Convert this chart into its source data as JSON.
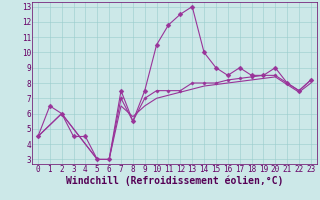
{
  "xlabel": "Windchill (Refroidissement éolien,°C)",
  "xlim": [
    0,
    23
  ],
  "ylim": [
    3,
    13
  ],
  "xticks": [
    0,
    1,
    2,
    3,
    4,
    5,
    6,
    7,
    8,
    9,
    10,
    11,
    12,
    13,
    14,
    15,
    16,
    17,
    18,
    19,
    20,
    21,
    22,
    23
  ],
  "yticks": [
    3,
    4,
    5,
    6,
    7,
    8,
    9,
    10,
    11,
    12,
    13
  ],
  "bg_color": "#cce8e8",
  "grid_color": "#99cccc",
  "line_color": "#993399",
  "line1_x": [
    0,
    1,
    2,
    3,
    4,
    5,
    6,
    7,
    8,
    9,
    10,
    11,
    12,
    13,
    14,
    15,
    16,
    17,
    18,
    19,
    20,
    21,
    22,
    23
  ],
  "line1_y": [
    4.5,
    6.5,
    6.0,
    4.5,
    4.5,
    3.0,
    3.0,
    7.5,
    5.5,
    7.5,
    10.5,
    11.8,
    12.5,
    13.0,
    10.0,
    9.0,
    8.5,
    9.0,
    8.5,
    8.5,
    9.0,
    8.0,
    7.5,
    8.2
  ],
  "line2_x": [
    0,
    2,
    5,
    6,
    7,
    8,
    9,
    10,
    11,
    12,
    13,
    14,
    15,
    16,
    17,
    18,
    19,
    20,
    21,
    22,
    23
  ],
  "line2_y": [
    4.5,
    6.0,
    3.0,
    3.0,
    7.0,
    5.5,
    7.0,
    7.5,
    7.5,
    7.5,
    8.0,
    8.0,
    8.0,
    8.2,
    8.3,
    8.4,
    8.5,
    8.5,
    8.0,
    7.5,
    8.2
  ],
  "line3_x": [
    0,
    2,
    5,
    6,
    7,
    8,
    9,
    10,
    11,
    12,
    13,
    14,
    15,
    16,
    17,
    18,
    19,
    20,
    21,
    22,
    23
  ],
  "line3_y": [
    4.5,
    6.0,
    3.0,
    3.0,
    6.5,
    5.8,
    6.5,
    7.0,
    7.2,
    7.4,
    7.6,
    7.8,
    7.9,
    8.0,
    8.1,
    8.2,
    8.3,
    8.4,
    7.9,
    7.4,
    8.0
  ],
  "font_family": "monospace",
  "tick_fontsize": 5.5,
  "xlabel_fontsize": 7,
  "line_width": 0.8,
  "marker_size": 2.5
}
